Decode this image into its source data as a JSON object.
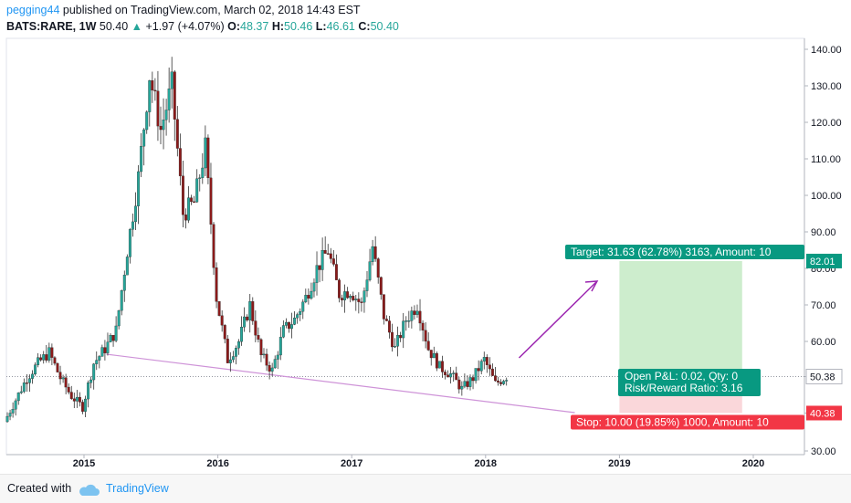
{
  "header": {
    "username": "pegging44",
    "published": "published on TradingView.com, March 02, 2018 14:43 EST",
    "symbol": "BATS:RARE, 1W",
    "last": "50.40",
    "change": "+1.97 (+4.07%)",
    "o_label": "O:",
    "o": "48.37",
    "h_label": "H:",
    "h": "50.46",
    "l_label": "L:",
    "l": "46.61",
    "c_label": "C:",
    "c": "50.40"
  },
  "footer": {
    "created_with": "Created with",
    "brand": "TradingView"
  },
  "colors": {
    "up": "#26a69a",
    "down": "#8b1a1a",
    "trendline": "#ce93d8",
    "arrow": "#9c27b0",
    "target": "#089981",
    "stop": "#f23645"
  },
  "chart_data": {
    "type": "candlestick",
    "y_axis": {
      "min": 30,
      "max": 140,
      "ticks": [
        "140.00",
        "130.00",
        "120.00",
        "110.00",
        "100.00",
        "90.00",
        "80.00",
        "70.00",
        "60.00",
        "50.38",
        "40.38",
        "30.00"
      ],
      "scale": "linear",
      "side": "right"
    },
    "x_axis": {
      "ticks": [
        "2015",
        "2016",
        "2017",
        "2018",
        "2019",
        "2020"
      ]
    },
    "price_labels": {
      "target": "82.01",
      "last": "50.38",
      "stop": "40.38"
    },
    "trendline": {
      "from": [
        "2015-03",
        56.5
      ],
      "to": [
        "2018-09",
        40.5
      ]
    },
    "position": {
      "entry": 50.4,
      "target": 82.01,
      "stop": 40.38,
      "target_label": "Target: 31.63 (62.78%) 3163, Amount: 10",
      "stop_label": "Stop: 10.00 (19.85%) 1000, Amount: 10",
      "pnl_label": "Open P&L: 0.02, Qty: 0",
      "rr_label": "Risk/Reward Ratio: 3.16"
    },
    "series": [
      {
        "date": "2014-06",
        "close": 38
      },
      {
        "date": "2014-07",
        "close": 44
      },
      {
        "date": "2014-08",
        "close": 50
      },
      {
        "date": "2014-09",
        "close": 54
      },
      {
        "date": "2014-10",
        "close": 57
      },
      {
        "date": "2014-11",
        "close": 50
      },
      {
        "date": "2014-12",
        "close": 45
      },
      {
        "date": "2015-01",
        "close": 42
      },
      {
        "date": "2015-02",
        "close": 54
      },
      {
        "date": "2015-03",
        "close": 58
      },
      {
        "date": "2015-04",
        "close": 63
      },
      {
        "date": "2015-05",
        "close": 85
      },
      {
        "date": "2015-06",
        "close": 105
      },
      {
        "date": "2015-07",
        "close": 133
      },
      {
        "date": "2015-08",
        "close": 118
      },
      {
        "date": "2015-09",
        "close": 130
      },
      {
        "date": "2015-10",
        "close": 95
      },
      {
        "date": "2015-11",
        "close": 98
      },
      {
        "date": "2015-12",
        "close": 113
      },
      {
        "date": "2016-01",
        "close": 72
      },
      {
        "date": "2016-02",
        "close": 55
      },
      {
        "date": "2016-03",
        "close": 60
      },
      {
        "date": "2016-04",
        "close": 70
      },
      {
        "date": "2016-05",
        "close": 56
      },
      {
        "date": "2016-06",
        "close": 52
      },
      {
        "date": "2016-07",
        "close": 63
      },
      {
        "date": "2016-08",
        "close": 66
      },
      {
        "date": "2016-09",
        "close": 72
      },
      {
        "date": "2016-10",
        "close": 80
      },
      {
        "date": "2016-11",
        "close": 85
      },
      {
        "date": "2016-12",
        "close": 73
      },
      {
        "date": "2017-01",
        "close": 74
      },
      {
        "date": "2017-02",
        "close": 70
      },
      {
        "date": "2017-03",
        "close": 86
      },
      {
        "date": "2017-04",
        "close": 67
      },
      {
        "date": "2017-05",
        "close": 58
      },
      {
        "date": "2017-06",
        "close": 66
      },
      {
        "date": "2017-07",
        "close": 70
      },
      {
        "date": "2017-08",
        "close": 58
      },
      {
        "date": "2017-09",
        "close": 53
      },
      {
        "date": "2017-10",
        "close": 51
      },
      {
        "date": "2017-11",
        "close": 47
      },
      {
        "date": "2017-12",
        "close": 50
      },
      {
        "date": "2018-01",
        "close": 55
      },
      {
        "date": "2018-02",
        "close": 48.4
      },
      {
        "date": "2018-03",
        "close": 50.4
      }
    ]
  }
}
